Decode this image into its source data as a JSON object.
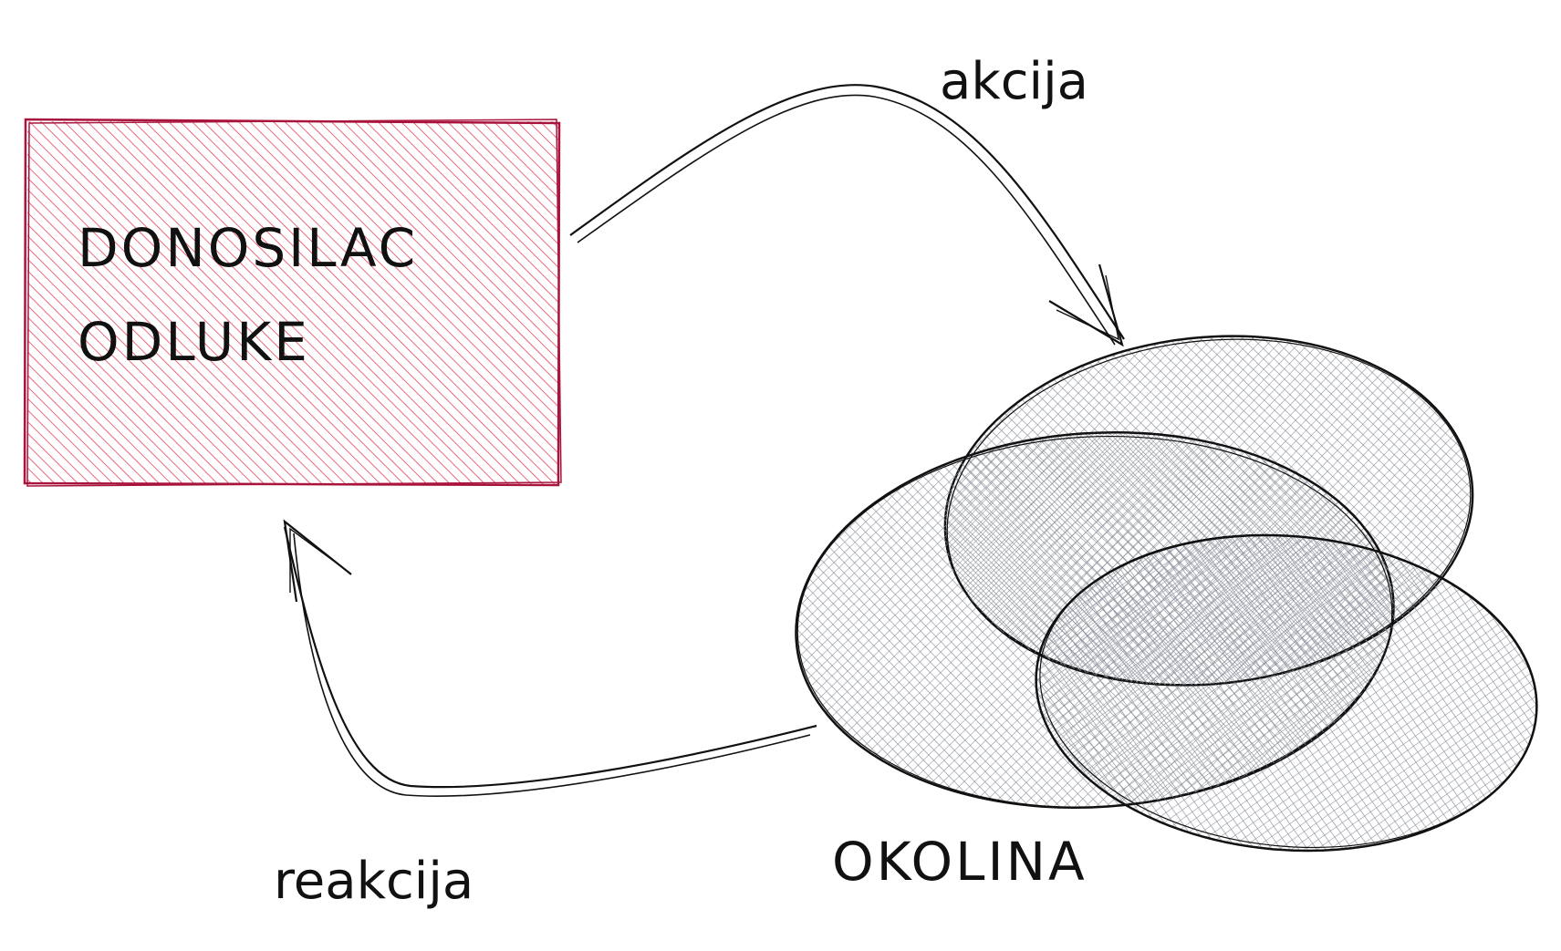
{
  "diagram": {
    "decision_maker": {
      "line1": "DONOSILAC",
      "line2": "ODLUKE",
      "fill_color": "#e8445a",
      "stroke_color": "#a8143c"
    },
    "environment": {
      "label": "OKOLINA",
      "fill_color": "#8a9099",
      "stroke_color": "#111111"
    },
    "action_arrow": {
      "label": "akcija"
    },
    "reaction_arrow": {
      "label": "reakcija"
    }
  }
}
